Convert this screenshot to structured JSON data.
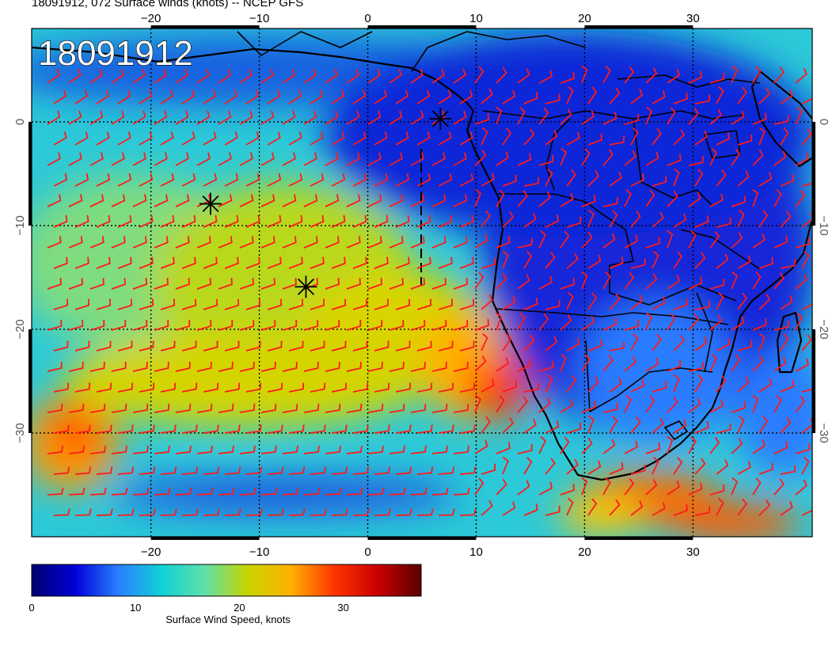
{
  "title": "18091912, 072 Surface winds (knots) -- NCEP GFS",
  "stamp": "18091912",
  "map": {
    "lon_range": [
      -31,
      41
    ],
    "lat_range": [
      9,
      -40
    ],
    "lon_ticks": [
      -20,
      -10,
      0,
      10,
      20,
      30
    ],
    "lat_ticks": [
      0,
      -10,
      -20,
      -30
    ],
    "lon_tick_labels": [
      "−20",
      "−10",
      "0",
      "10",
      "20",
      "30"
    ],
    "lat_tick_labels": [
      "0",
      "−10",
      "−20",
      "−30"
    ],
    "graticule_lons": [
      -20,
      -10,
      0,
      10,
      20,
      30
    ],
    "graticule_lats": [
      0,
      -10,
      -20,
      -30
    ],
    "barb_color": "#ff1a1a",
    "markers": [
      {
        "lon": -14.5,
        "lat": -7.9
      },
      {
        "lon": -5.7,
        "lat": -15.9
      },
      {
        "lon": 6.7,
        "lat": 0.3
      }
    ]
  },
  "colorbar": {
    "label": "Surface Wind Speed, knots",
    "range": [
      0,
      37.5
    ],
    "tick_values": [
      0,
      10,
      20,
      30
    ],
    "tick_labels": [
      "0",
      "10",
      "20",
      "30"
    ],
    "colors": [
      "#00006e",
      "#0000d8",
      "#2a7fff",
      "#11d0d6",
      "#5ee0a8",
      "#c9d400",
      "#ffb000",
      "#ff3300",
      "#c80000",
      "#5a0000"
    ]
  }
}
